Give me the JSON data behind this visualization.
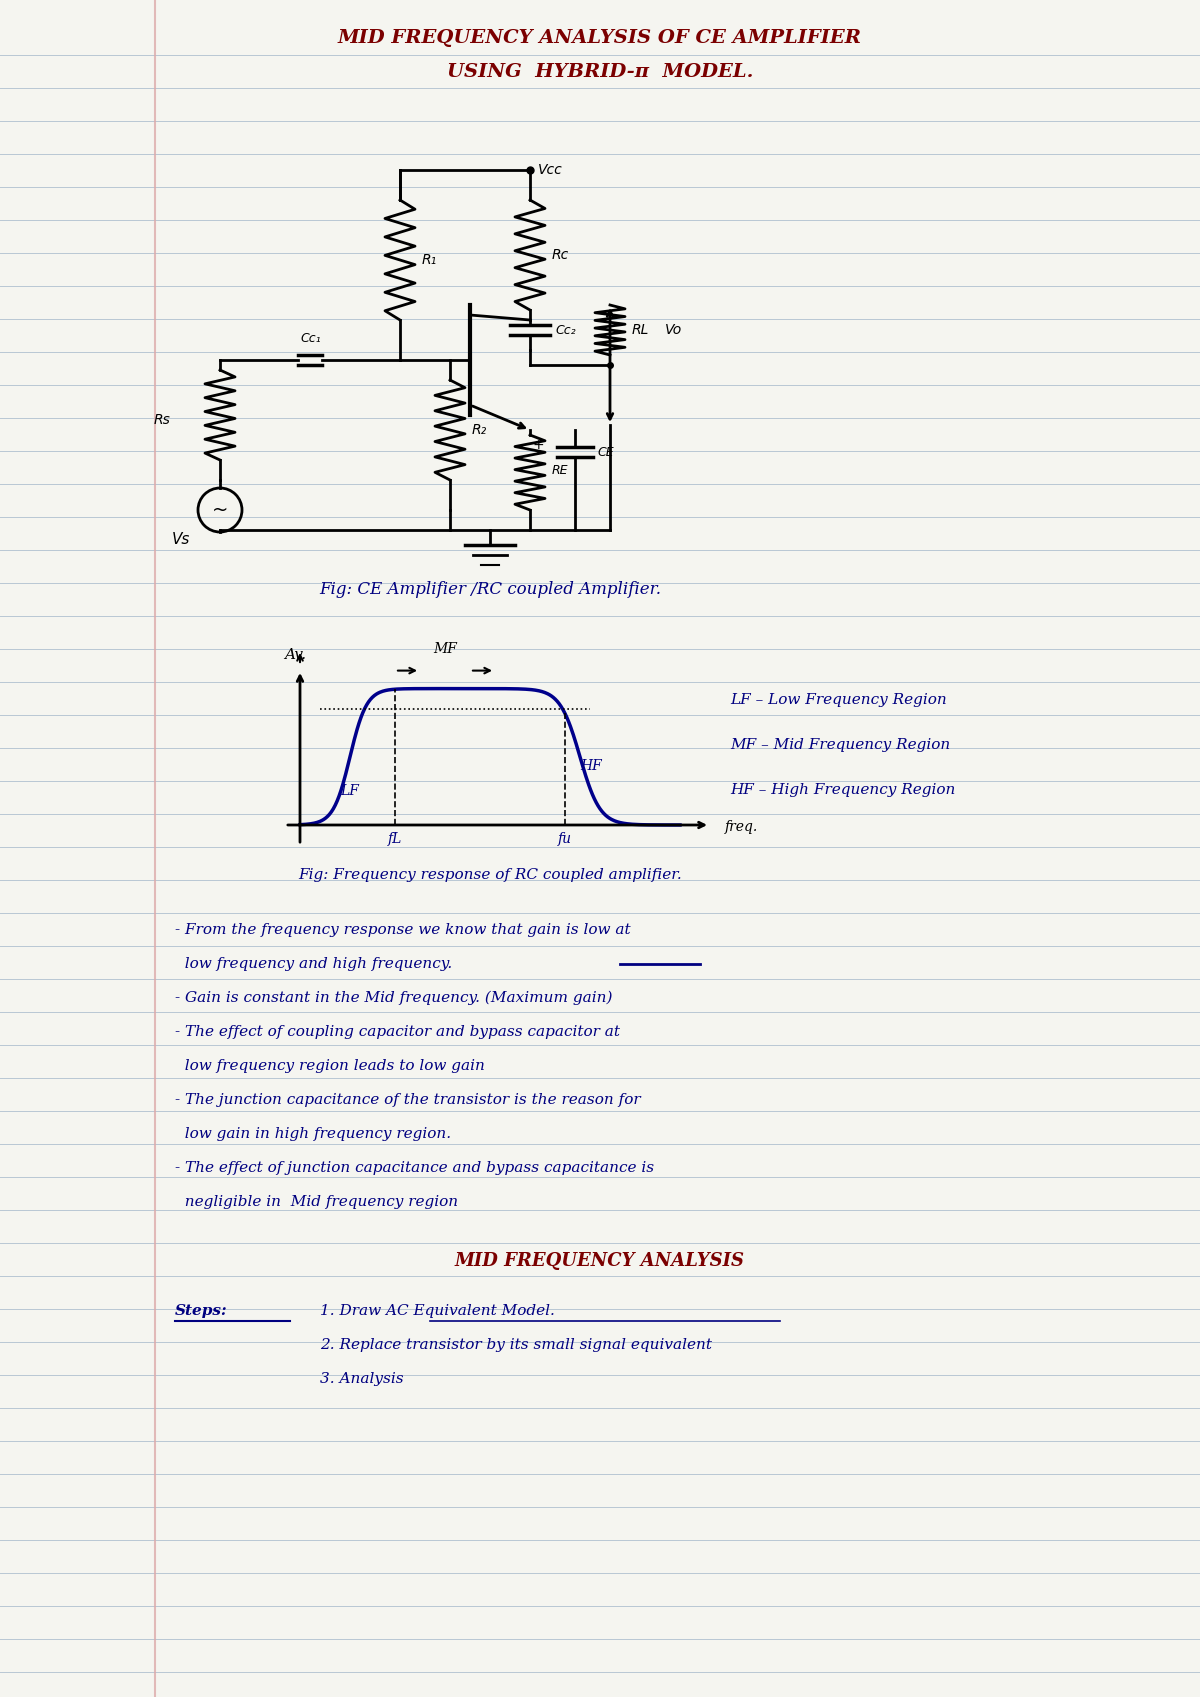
{
  "bg_color": "#f5f5f0",
  "line_color": "#aabbcc",
  "margin_color": "#ddaaaa",
  "title1": "MID FREQUENCY ANALYSIS OF CE AMPLIFIER",
  "title2": "USING  HYBRID-π  MODEL.",
  "fig1_caption": "Fig: CE Amplifier /RC coupled Amplifier.",
  "fig2_caption": "Fig: Frequency response of RC coupled amplifier.",
  "legend_lf": "LF – Low Frequency Region",
  "legend_mf": "MF – Mid Frequency Region",
  "legend_hf": "HF – High Frequency Region",
  "av_label": "Av.",
  "freq_label": "freq.",
  "mf_label": "MF",
  "lf_label": "LF",
  "hf_label": "HF",
  "fl_label": "fL",
  "fu_label": "fu",
  "vcc_label": "Vcc",
  "r1_label": "R₁",
  "rc_label": "Rc",
  "cc2_label": "Cc₂",
  "cc1_label": "Cc₁",
  "r2_label": "R₂",
  "re_label": "RE",
  "ce_label": "CE",
  "rl_label": "RL",
  "vo_label": "Vo",
  "rs_label": "Rs",
  "vs_label": "Vs",
  "bullet1a": "- From the frequency response we know that gain is low at",
  "bullet1b": "  low frequency and high frequency.",
  "bullet2": "- Gain is constant in the Mid frequency. (Maximum gain)",
  "bullet3a": "- The effect of coupling capacitor and bypass capacitor at",
  "bullet3b": "  low frequency region leads to low gain",
  "bullet4a": "- The junction capacitance of the transistor is the reason for",
  "bullet4b": "  low gain in high frequency region.",
  "bullet5a": "- The effect of junction capacitance and bypass capacitance is",
  "bullet5b": "  negligible in  Mid frequency region",
  "mid_heading": "MID FREQUENCY ANALYSIS",
  "steps_label": "Steps:",
  "step1": "1. Draw AC Equivalent Model.",
  "step2": "2. Replace transistor by its small signal equivalent",
  "step3": "3. Analysis"
}
